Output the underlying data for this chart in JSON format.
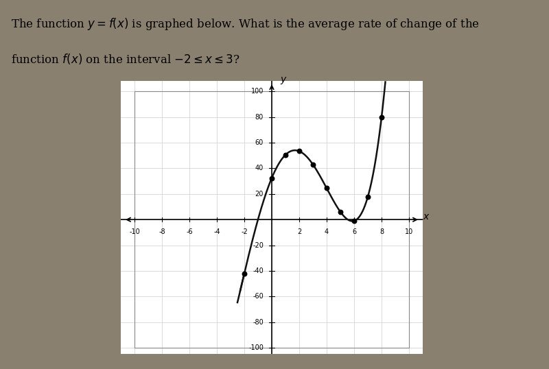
{
  "question_line1": "The function $y = f(x)$ is graphed below. What is the average rate of change of the",
  "question_line2": "function $f(x)$ on the interval $-2 \\leq x \\leq 3$?",
  "xlim": [
    -11,
    11
  ],
  "ylim": [
    -105,
    108
  ],
  "xtick_values": [
    -10,
    -8,
    -6,
    -4,
    -2,
    2,
    4,
    6,
    8,
    10
  ],
  "ytick_values": [
    -100,
    -80,
    -60,
    -40,
    -20,
    20,
    40,
    60,
    80,
    100
  ],
  "key_points_x": [
    -2,
    0,
    1,
    2,
    3,
    4,
    5,
    6,
    7,
    8
  ],
  "key_points_y": [
    -40,
    20,
    63,
    55,
    45,
    20,
    2,
    -5,
    30,
    75
  ],
  "marked_x": [
    -2,
    0,
    1,
    2,
    3,
    4,
    5,
    6,
    7,
    8
  ],
  "curve_color": "#111111",
  "bg_color": "#8a8070",
  "plot_bg_color": "#ffffff",
  "grid_color": "#cccccc",
  "text_bg_color": "#e8e0d4",
  "poly_degree": 4,
  "figsize": [
    8.0,
    5.38
  ],
  "dpi": 100
}
